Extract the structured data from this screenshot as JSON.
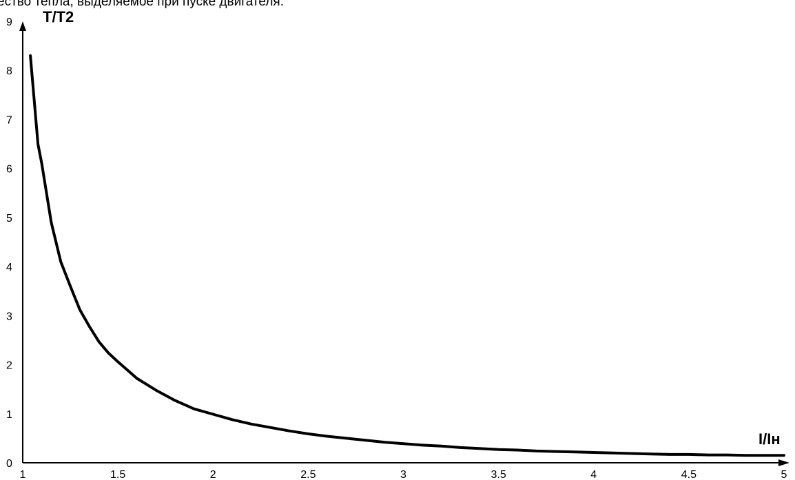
{
  "top_text": "ество тепла, выделяемое при пуске двигателя.",
  "chart_data": {
    "type": "line",
    "title": "",
    "xlabel": "I/Iн",
    "ylabel": "T/T2",
    "xlim": [
      1,
      5
    ],
    "ylim": [
      0,
      9
    ],
    "x_ticks": [
      "1",
      "1.5",
      "2",
      "2.5",
      "3",
      "3.5",
      "4",
      "4.5",
      "5"
    ],
    "y_ticks": [
      "0",
      "1",
      "2",
      "3",
      "4",
      "5",
      "6",
      "7",
      "8",
      "9"
    ],
    "grid": false,
    "line_color": "#000000",
    "series": [
      {
        "x": [
          1.04,
          1.08,
          1.1,
          1.15,
          1.2,
          1.25,
          1.3,
          1.35,
          1.4,
          1.45,
          1.5,
          1.6,
          1.7,
          1.8,
          1.9,
          2.0,
          2.1,
          2.2,
          2.3,
          2.4,
          2.5,
          2.6,
          2.7,
          2.8,
          2.9,
          3.0,
          3.1,
          3.2,
          3.3,
          3.4,
          3.5,
          3.6,
          3.7,
          3.8,
          3.9,
          4.0,
          4.1,
          4.2,
          4.3,
          4.4,
          4.5,
          4.6,
          4.7,
          4.8,
          4.9,
          5.0
        ],
        "values": [
          8.3,
          6.5,
          6.1,
          4.9,
          4.1,
          3.6,
          3.12,
          2.78,
          2.47,
          2.24,
          2.06,
          1.72,
          1.48,
          1.27,
          1.1,
          0.99,
          0.88,
          0.79,
          0.72,
          0.65,
          0.59,
          0.54,
          0.5,
          0.46,
          0.42,
          0.39,
          0.36,
          0.34,
          0.31,
          0.29,
          0.27,
          0.26,
          0.24,
          0.23,
          0.22,
          0.21,
          0.2,
          0.19,
          0.18,
          0.17,
          0.17,
          0.16,
          0.16,
          0.15,
          0.15,
          0.15
        ]
      }
    ]
  }
}
